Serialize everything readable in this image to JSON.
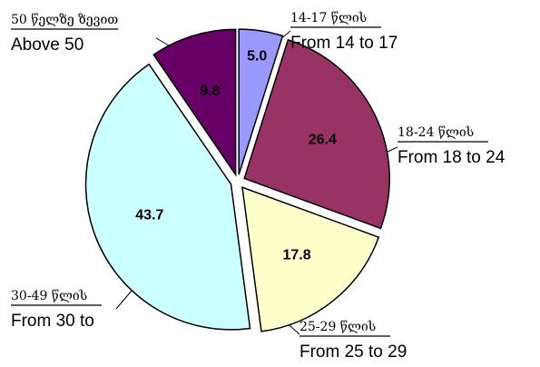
{
  "chart_data": {
    "type": "pie",
    "categories": [
      "From 14 to 17",
      "From 18 to 24",
      "From 25 to 29",
      "From 30 to",
      "Above 50"
    ],
    "category_labels_ka": [
      "14-17 წლის",
      "18-24 წლის",
      "25-29 წლის",
      "30-49 წლის",
      "50 წელზე ზევით"
    ],
    "values": [
      5,
      26.4,
      17.8,
      43.7,
      9.8
    ],
    "value_labels": [
      "5.0",
      "26.4",
      "17.8",
      "43.7",
      "9.8"
    ],
    "colors": [
      "#9999ff",
      "#993366",
      "#ffffcc",
      "#ccffff",
      "#660066"
    ]
  }
}
